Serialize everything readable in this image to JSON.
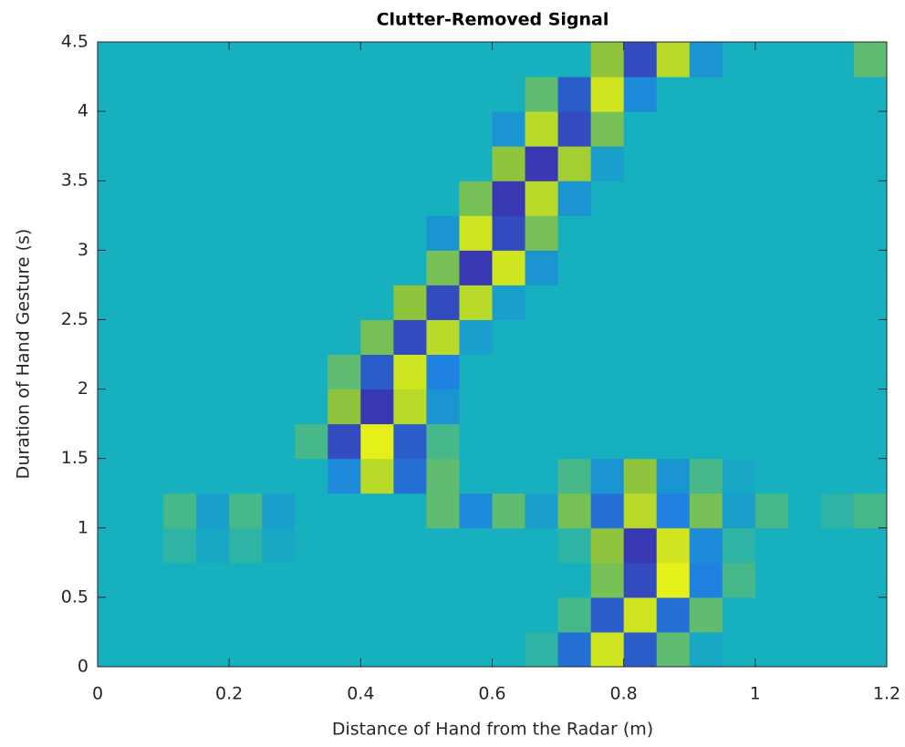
{
  "chart_data": {
    "type": "heatmap",
    "title": "Clutter-Removed Signal",
    "x_label": "Distance of Hand from the Radar (m)",
    "y_label": "Duration of Hand Gesture (s)",
    "xlim": [
      0,
      1.2
    ],
    "ylim": [
      0,
      4.5
    ],
    "xticks": [
      0,
      0.2,
      0.4,
      0.6,
      0.8,
      1,
      1.2
    ],
    "yticks": [
      0,
      0.5,
      1,
      1.5,
      2,
      2.5,
      3,
      3.5,
      4,
      4.5
    ],
    "clim": [
      -1,
      1
    ],
    "colormap": [
      "#3e26a8",
      "#1f82e0",
      "#16b0be",
      "#8fc43c",
      "#f9fb0e"
    ],
    "x": [
      0.025,
      0.075,
      0.125,
      0.175,
      0.225,
      0.275,
      0.325,
      0.375,
      0.425,
      0.475,
      0.525,
      0.575,
      0.625,
      0.675,
      0.725,
      0.775,
      0.825,
      0.875,
      0.925,
      0.975,
      1.025,
      1.075,
      1.125,
      1.175
    ],
    "y": [
      0.125,
      0.375,
      0.625,
      0.875,
      1.125,
      1.375,
      1.625,
      1.875,
      2.125,
      2.375,
      2.625,
      2.875,
      3.125,
      3.375,
      3.625,
      3.875,
      4.125,
      4.375
    ],
    "z": [
      [
        0,
        0,
        0,
        0,
        0,
        0,
        0,
        0,
        0,
        0,
        0,
        0,
        0,
        0.1,
        -0.6,
        0.8,
        -0.7,
        0.3,
        -0.1,
        0,
        0,
        0,
        0,
        0
      ],
      [
        0,
        0,
        0,
        0,
        0,
        0,
        0,
        0,
        0,
        0,
        0,
        0,
        0,
        0,
        0.2,
        -0.7,
        0.8,
        -0.6,
        0.3,
        0,
        0,
        0,
        0,
        0
      ],
      [
        0,
        0,
        0,
        0,
        0,
        0,
        0,
        0,
        0,
        0,
        0,
        0,
        0,
        0,
        0,
        0.4,
        -0.8,
        0.9,
        -0.5,
        0.2,
        0,
        0,
        0,
        0
      ],
      [
        0,
        0,
        0.1,
        -0.1,
        0.1,
        -0.1,
        0,
        0,
        0,
        0,
        0,
        0,
        0,
        0,
        0.1,
        0.5,
        -0.9,
        0.8,
        -0.4,
        0.1,
        0,
        0,
        0,
        0
      ],
      [
        0,
        0,
        0.2,
        -0.2,
        0.2,
        -0.2,
        0,
        0,
        0,
        0,
        0.3,
        -0.4,
        0.3,
        -0.2,
        0.4,
        -0.6,
        0.7,
        -0.5,
        0.4,
        -0.2,
        0.2,
        0,
        0.1,
        0.2
      ],
      [
        0,
        0,
        0,
        0,
        0,
        0,
        0,
        -0.4,
        0.7,
        -0.6,
        0.3,
        0,
        0,
        0,
        0.2,
        -0.3,
        0.5,
        -0.3,
        0.2,
        -0.1,
        0,
        0,
        0,
        0
      ],
      [
        0,
        0,
        0,
        0,
        0,
        0,
        0.2,
        -0.8,
        0.9,
        -0.7,
        0.2,
        0,
        0,
        0,
        0,
        0,
        0,
        0,
        0,
        0,
        0,
        0,
        0,
        0
      ],
      [
        0,
        0,
        0,
        0,
        0,
        0,
        0,
        0.5,
        -0.9,
        0.7,
        -0.3,
        0,
        0,
        0,
        0,
        0,
        0,
        0,
        0,
        0,
        0,
        0,
        0,
        0
      ],
      [
        0,
        0,
        0,
        0,
        0,
        0,
        0,
        0.3,
        -0.7,
        0.8,
        -0.5,
        0,
        0,
        0,
        0,
        0,
        0,
        0,
        0,
        0,
        0,
        0,
        0,
        0
      ],
      [
        0,
        0,
        0,
        0,
        0,
        0,
        0,
        0,
        0.4,
        -0.8,
        0.7,
        -0.2,
        0,
        0,
        0,
        0,
        0,
        0,
        0,
        0,
        0,
        0,
        0,
        0
      ],
      [
        0,
        0,
        0,
        0,
        0,
        0,
        0,
        0,
        0,
        0.5,
        -0.8,
        0.7,
        -0.2,
        0,
        0,
        0,
        0,
        0,
        0,
        0,
        0,
        0,
        0,
        0
      ],
      [
        0,
        0,
        0,
        0,
        0,
        0,
        0,
        0,
        0,
        0,
        0.4,
        -0.9,
        0.8,
        -0.3,
        0,
        0,
        0,
        0,
        0,
        0,
        0,
        0,
        0,
        0
      ],
      [
        0,
        0,
        0,
        0,
        0,
        0,
        0,
        0,
        0,
        0,
        -0.3,
        0.8,
        -0.8,
        0.4,
        0,
        0,
        0,
        0,
        0,
        0,
        0,
        0,
        0,
        0
      ],
      [
        0,
        0,
        0,
        0,
        0,
        0,
        0,
        0,
        0,
        0,
        0,
        0.4,
        -0.9,
        0.7,
        -0.3,
        0,
        0,
        0,
        0,
        0,
        0,
        0,
        0,
        0
      ],
      [
        0,
        0,
        0,
        0,
        0,
        0,
        0,
        0,
        0,
        0,
        0,
        0,
        0.5,
        -0.9,
        0.6,
        -0.2,
        0,
        0,
        0,
        0,
        0,
        0,
        0,
        0
      ],
      [
        0,
        0,
        0,
        0,
        0,
        0,
        0,
        0,
        0,
        0,
        0,
        0,
        -0.3,
        0.7,
        -0.8,
        0.4,
        0,
        0,
        0,
        0,
        0,
        0,
        0,
        0
      ],
      [
        0,
        0,
        0,
        0,
        0,
        0,
        0,
        0,
        0,
        0,
        0,
        0,
        0,
        0.3,
        -0.7,
        0.8,
        -0.4,
        0,
        0,
        0,
        0,
        0,
        0,
        0
      ],
      [
        0,
        0,
        0,
        0,
        0,
        0,
        0,
        0,
        0,
        0,
        0,
        0,
        0,
        0,
        0,
        0.5,
        -0.8,
        0.7,
        -0.3,
        0,
        0,
        0,
        0,
        0.3
      ]
    ]
  }
}
